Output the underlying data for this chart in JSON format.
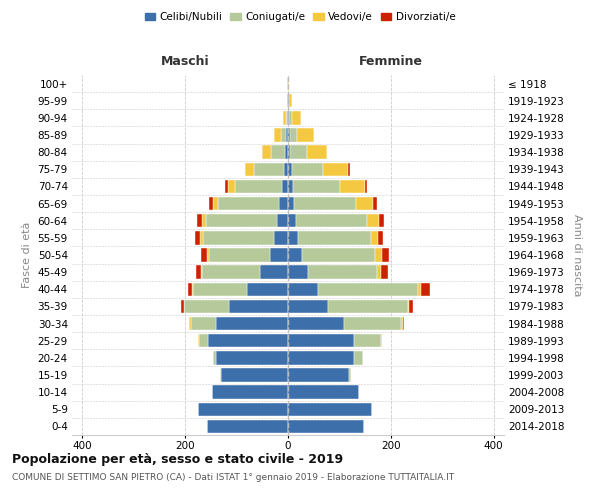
{
  "age_groups": [
    "0-4",
    "5-9",
    "10-14",
    "15-19",
    "20-24",
    "25-29",
    "30-34",
    "35-39",
    "40-44",
    "45-49",
    "50-54",
    "55-59",
    "60-64",
    "65-69",
    "70-74",
    "75-79",
    "80-84",
    "85-89",
    "90-94",
    "95-99",
    "100+"
  ],
  "birth_years": [
    "2014-2018",
    "2009-2013",
    "2004-2008",
    "1999-2003",
    "1994-1998",
    "1989-1993",
    "1984-1988",
    "1979-1983",
    "1974-1978",
    "1969-1973",
    "1964-1968",
    "1959-1963",
    "1954-1958",
    "1949-1953",
    "1944-1948",
    "1939-1943",
    "1934-1938",
    "1929-1933",
    "1924-1928",
    "1919-1923",
    "≤ 1918"
  ],
  "colors": {
    "celibi": "#3d6faa",
    "coniugati": "#b5c99a",
    "vedovi": "#f5c842",
    "divorziati": "#cc2200"
  },
  "males": {
    "celibi": [
      158,
      175,
      148,
      130,
      140,
      155,
      140,
      115,
      80,
      55,
      35,
      28,
      22,
      18,
      12,
      8,
      5,
      3,
      1,
      1,
      1
    ],
    "coniugati": [
      0,
      0,
      0,
      2,
      5,
      18,
      48,
      88,
      105,
      112,
      118,
      138,
      138,
      118,
      92,
      58,
      28,
      10,
      3,
      0,
      0
    ],
    "vedovi": [
      0,
      0,
      0,
      0,
      0,
      2,
      4,
      0,
      2,
      3,
      4,
      5,
      8,
      10,
      13,
      18,
      18,
      14,
      5,
      1,
      0
    ],
    "divorziati": [
      0,
      0,
      0,
      0,
      0,
      0,
      0,
      5,
      8,
      8,
      12,
      10,
      8,
      8,
      5,
      0,
      0,
      0,
      0,
      0,
      0
    ]
  },
  "females": {
    "celibi": [
      148,
      163,
      138,
      118,
      128,
      128,
      108,
      78,
      58,
      38,
      28,
      20,
      16,
      11,
      9,
      7,
      4,
      3,
      2,
      1,
      0
    ],
    "coniugati": [
      0,
      0,
      0,
      4,
      18,
      52,
      112,
      155,
      195,
      136,
      142,
      142,
      138,
      122,
      92,
      62,
      33,
      14,
      5,
      1,
      0
    ],
    "vedovi": [
      0,
      0,
      0,
      0,
      0,
      2,
      3,
      3,
      5,
      7,
      13,
      13,
      23,
      33,
      48,
      48,
      38,
      33,
      18,
      5,
      2
    ],
    "divorziati": [
      0,
      0,
      0,
      0,
      0,
      0,
      3,
      7,
      18,
      13,
      13,
      10,
      9,
      7,
      4,
      4,
      0,
      0,
      0,
      0,
      0
    ]
  },
  "xlim": 420,
  "title": "Popolazione per età, sesso e stato civile - 2019",
  "subtitle": "COMUNE DI SETTIMO SAN PIETRO (CA) - Dati ISTAT 1° gennaio 2019 - Elaborazione TUTTAITALIA.IT",
  "ylabel_left": "Fasce di età",
  "ylabel_right": "Anni di nascita",
  "label_maschi": "Maschi",
  "label_femmine": "Femmine",
  "legend": [
    "Celibi/Nubili",
    "Coniugati/e",
    "Vedovi/e",
    "Divorziati/e"
  ],
  "legend_color_keys": [
    "celibi",
    "coniugati",
    "vedovi",
    "divorziati"
  ],
  "xticks": [
    -400,
    -200,
    0,
    200,
    400
  ],
  "bar_height": 0.78,
  "background": "#ffffff",
  "grid_color": "#cccccc",
  "title_fontsize": 9,
  "subtitle_fontsize": 6.5,
  "tick_fontsize": 7.5,
  "legend_fontsize": 7.5
}
